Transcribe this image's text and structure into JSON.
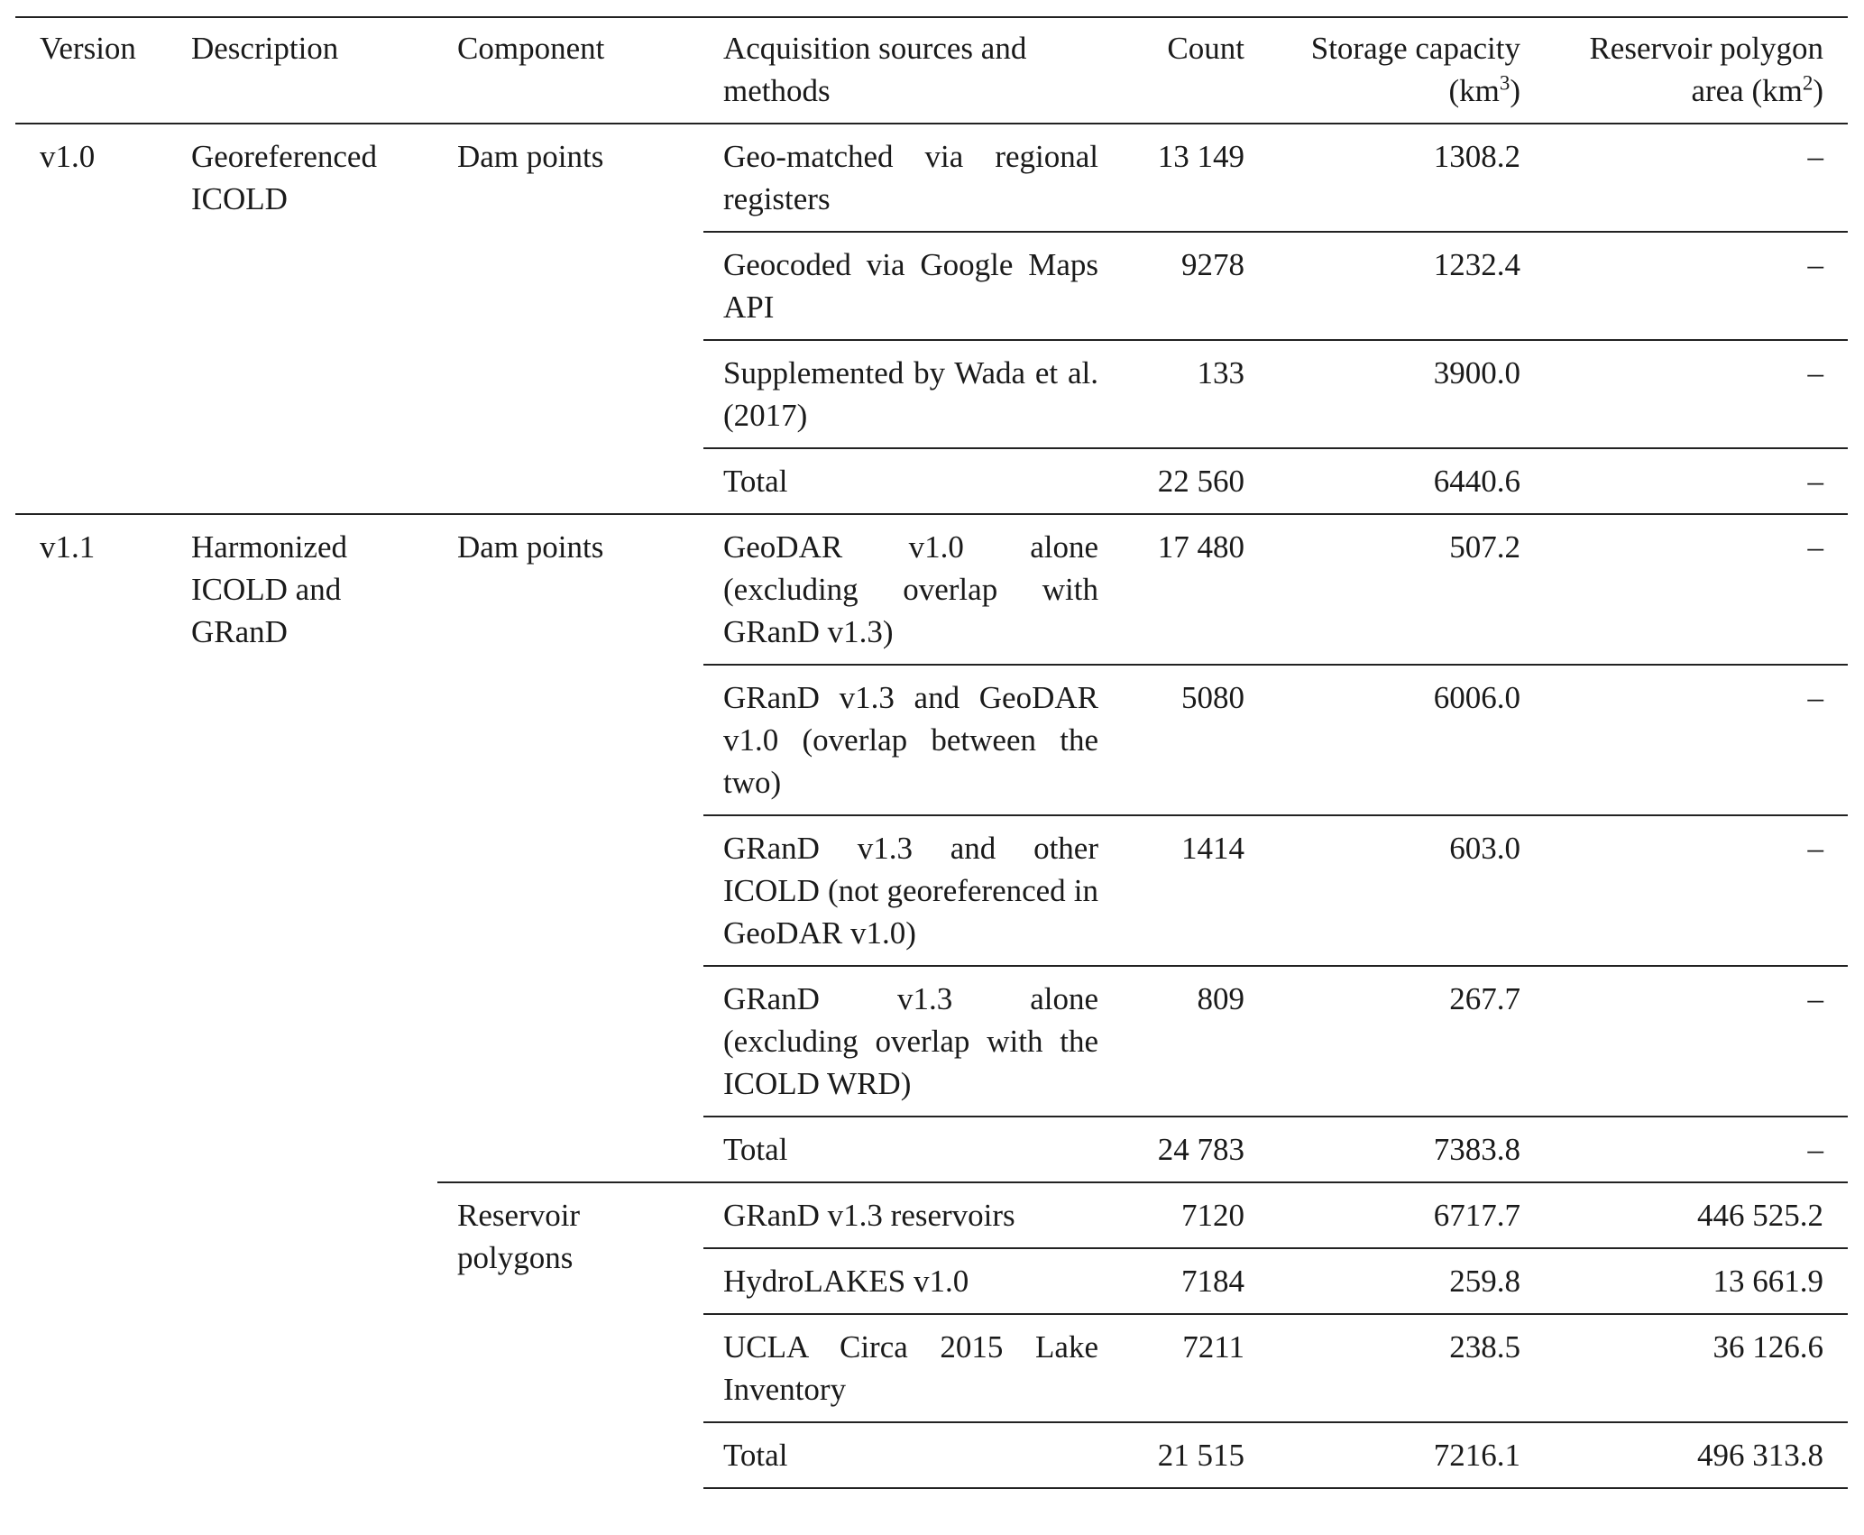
{
  "table": {
    "header": [
      "Version",
      "Description",
      "Component",
      "Acquisition sources and methods",
      "Count",
      {
        "before": "Storage capacity (km",
        "sup": "3",
        "after": ")"
      },
      {
        "before": "Reservoir polygon area (km",
        "sup": "2",
        "after": ")"
      }
    ],
    "groups": [
      {
        "version": "v1.0",
        "description": "Georeferenced ICOLD",
        "components": [
          {
            "name": "Dam points",
            "rows": [
              [
                "Geo-matched via regional registers",
                "13 149",
                "1308.2",
                "–"
              ],
              [
                "Geocoded via Google Maps API",
                "9278",
                "1232.4",
                "–"
              ],
              [
                "Supplemented by Wada et al. (2017)",
                "133",
                "3900.0",
                "–"
              ],
              [
                "Total",
                "22 560",
                "6440.6",
                "–"
              ]
            ]
          }
        ]
      },
      {
        "version": "v1.1",
        "description": "Harmonized ICOLD and GRanD",
        "components": [
          {
            "name": "Dam points",
            "rows": [
              [
                "GeoDAR v1.0 alone (excluding overlap with GRanD v1.3)",
                "17 480",
                "507.2",
                "–"
              ],
              [
                "GRanD v1.3 and GeoDAR v1.0 (overlap between the two)",
                "5080",
                "6006.0",
                "–"
              ],
              [
                "GRanD v1.3 and other ICOLD (not georeferenced in GeoDAR v1.0)",
                "1414",
                "603.0",
                "–"
              ],
              [
                "GRanD v1.3 alone (excluding overlap with the ICOLD WRD)",
                "809",
                "267.7",
                "–"
              ],
              [
                "Total",
                "24 783",
                "7383.8",
                "–"
              ]
            ]
          },
          {
            "name": "Reservoir polygons",
            "rows": [
              [
                "GRanD v1.3 reservoirs",
                "7120",
                "6717.7",
                "446 525.2"
              ],
              [
                "HydroLAKES v1.0",
                "7184",
                "259.8",
                "13 661.9"
              ],
              [
                "UCLA Circa 2015 Lake Inventory",
                "7211",
                "238.5",
                "36 126.6"
              ],
              [
                "Total",
                "21 515",
                "7216.1",
                "496 313.8"
              ]
            ]
          }
        ]
      }
    ]
  }
}
